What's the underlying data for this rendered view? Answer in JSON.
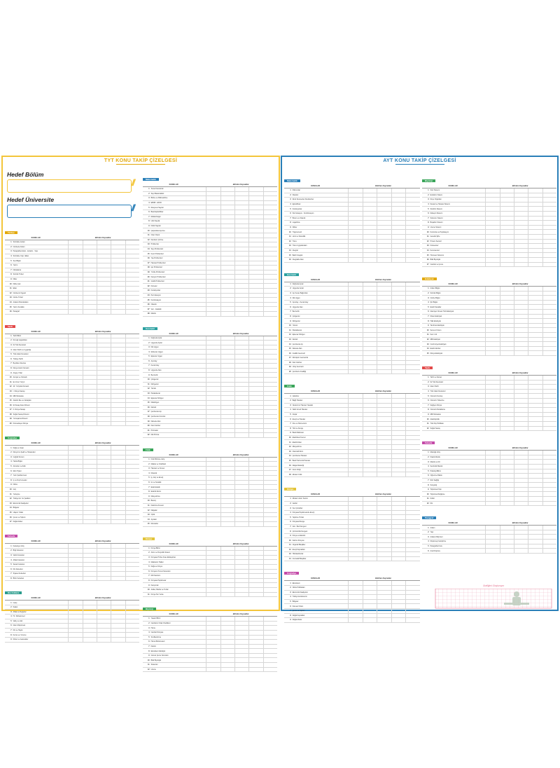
{
  "tyt": {
    "title": "TYT KONU TAKİP ÇİZELGESİ",
    "hedef_bolum": "Hedef Bölüm",
    "hedef_universite": "Hedef Üniversite",
    "konular_label": "KONULAR",
    "bitirilen_label": "Bitirilen Kaynaklar",
    "columns": [
      [
        {
          "name": "Türkçe",
          "color": "#e2a90c",
          "topics": [
            "Sözcükte Anlam",
            "Cümlede Anlam",
            "Paragrafta Anlam - Anlatım - Yapı",
            "Sözcükte Yapı / Ekler",
            "Ses Bilgisi",
            "Yazım",
            "Noktalama",
            "Sözcük Türleri",
            "Fiiller",
            "Fiilde Çatı",
            "Ekler",
            "Cümlenin Ögeleri",
            "Cümle Türleri",
            "Anlatım Bozuklukları",
            "Yazım Kuralları",
            "Paragraf"
          ]
        },
        {
          "name": "Tarih",
          "color": "#e24a4a",
          "topics": [
            "Tarih Bilimi",
            "İlk Çağ Uygarlıkları",
            "İlk Türk Devletleri",
            "İslam Tarihi ve Uygarlığı",
            "Türk-İslam Devletleri",
            "Türkiye Tarihi",
            "Beylikten Devlete",
            "Dünya Gücü Osmanlı",
            "Arayış Yılları",
            "Avrupa ve Osmanlı",
            "En Uzun Yüzyıl",
            "20. Yüzyılda Osmanlı",
            "I. Dünya Savaşı",
            "Milli Mücadele",
            "Atatürk İlke ve İnkılapları",
            "İki Savaş Arası Dönem",
            "II. Dünya Savaşı",
            "Soğuk Savaş Dönemi",
            "Yumuşama Dönemi",
            "Küreselleşen Dünya"
          ]
        },
        {
          "name": "Coğrafya",
          "color": "#3aa55a",
          "topics": [
            "Doğa ve İnsan",
            "Dünya'nın Şekli ve Hareketleri",
            "Coğrafi Konum",
            "Harita Bilgisi",
            "Atmosfer ve İklim",
            "İklim Tipleri",
            "Yerin Şekillenmesi",
            "İç ve Dış Kuvvetler",
            "Nüfus",
            "Göç",
            "Yerleşme",
            "Türkiye'nin Yer Şekilleri",
            "Ekonomik Faaliyetler",
            "Bölgeler",
            "Ulaşım Yolları",
            "Çevre ve Toplum",
            "Doğal Afetler"
          ]
        },
        {
          "name": "Felsefe",
          "color": "#c44aa8",
          "topics": [
            "Felsefeye Giriş",
            "Bilgi Felsefesi",
            "Varlık Felsefesi",
            "Ahlak Felsefesi",
            "Sanat Felsefesi",
            "Din Felsefesi",
            "Siyaset Felsefesi",
            "Bilim Felsefesi"
          ]
        },
        {
          "name": "Din Kültürü",
          "color": "#2a9c8c",
          "topics": [
            "İnanç",
            "İbadet",
            "Ahlak ve Değerler",
            "Hz. Muhammed",
            "Vahiy ve Akıl",
            "İslam Düşüncesi",
            "Din ve Hayat",
            "Kur'an ve Yorumu",
            "Dinler ve Gelenekler"
          ]
        }
      ],
      [
        {
          "name": "Matematik",
          "color": "#2a7fb8",
          "topics": [
            "Temel Kavramlar",
            "Sayı Basamakları",
            "Bölme ve Bölünebilme",
            "EBOB - EKOK",
            "Rasyonel Sayılar",
            "Basit Eşitsizlikler",
            "Mutlak Değer",
            "Üslü Sayılar",
            "Köklü Sayılar",
            "Çarpanlara Ayırma",
            "Oran Orantı",
            "Denklem Çözme",
            "Problemler",
            "Sayı Problemleri",
            "Kesir Problemleri",
            "Yaş Problemleri",
            "Hareket Problemleri",
            "İşçi Problemleri",
            "Yüzde Problemleri",
            "Karışım Problemleri",
            "Grafik Problemleri",
            "Kümeler",
            "Fonksiyonlar",
            "Permütasyon",
            "Kombinasyon",
            "Olasılık",
            "Veri - İstatistik",
            "Mantık"
          ]
        },
        {
          "name": "Geometri",
          "color": "#2aa0a0",
          "topics": [
            "Doğruda Açılar",
            "Üçgende Açılar",
            "Dik Üçgen",
            "İkizkenar Üçgen",
            "Eşkenar Üçgen",
            "Açıortay",
            "Kenarortay",
            "Üçgende Alan",
            "Benzerlik",
            "Çokgenler",
            "Dörtgenler",
            "Yamuk",
            "Paralelkenar",
            "Eşkenar Dörtgen",
            "Dikdörtgen",
            "Deltoid",
            "Çemberde Açı",
            "Çemberde Uzunluk",
            "Dairede Alan",
            "Katı Cisimler",
            "Prizmalar",
            "Dik Prizma"
          ]
        },
        {
          "name": "Fizik",
          "color": "#3aa55a",
          "topics": [
            "Fizik Bilimine Giriş",
            "Madde ve Özellikleri",
            "Hareket ve Kuvvet",
            "Dinamik",
            "İş, Güç ve Enerji",
            "Isı ve Sıcaklık",
            "Elektrostatik",
            "Elektrik Akımı",
            "Manyetizma",
            "Basınç",
            "Kaldırma Kuvveti",
            "Dalgalar",
            "Optik",
            "Aynalar",
            "Mercekler"
          ]
        },
        {
          "name": "Kimya",
          "color": "#e2c43a",
          "topics": [
            "Kimya Bilimi",
            "Atom ve Periyodik Sistem",
            "Kimyasal Türler Arası Etkileşimler",
            "Maddenin Halleri",
            "Doğa ve Kimya",
            "Kimyanın Temel Kanunları",
            "Mol Kavramı",
            "Kimyasal Tepkimeler",
            "Karışımlar",
            "Asitler, Bazlar ve Tuzlar",
            "Kimya Her Yerde"
          ]
        },
        {
          "name": "Biyoloji",
          "color": "#3aa55a",
          "topics": [
            "Yaşam Bilimi",
            "Canlıların Ortak Özellikleri",
            "Hücre",
            "Canlılar Dünyası",
            "Sınıflandırma",
            "Hücre Bölünmeleri",
            "Kalıtım",
            "Ekosistem Ekolojisi",
            "Güncel Çevre Sorunları",
            "Bitki Biyolojisi",
            "Sistemler",
            "Üreme"
          ]
        }
      ]
    ]
  },
  "ayt": {
    "title": "AYT KONU TAKİP ÇİZELGESİ",
    "konular_label": "KONULAR",
    "bitirilen_label": "Bitirilen Kaynaklar",
    "graph_title": "Grafiğimi Oluşturuyor",
    "columns": [
      [
        {
          "name": "Matematik",
          "color": "#2a7fb8",
          "topics": [
            "Polinomlar",
            "Parabol",
            "İkinci Dereceden Denklemler",
            "Eşitsizlikler",
            "Fonksiyonlar",
            "Permütasyon - Kombinasyon",
            "Binom ve Olasılık",
            "Logaritma",
            "Diziler",
            "Trigonometri",
            "Limit ve Süreklilik",
            "Türev",
            "Türev Uygulamaları",
            "İntegral",
            "Belirli İntegral",
            "İntegralde Alan"
          ]
        },
        {
          "name": "Geometri",
          "color": "#2aa0a0",
          "topics": [
            "Doğruda Açılar",
            "Üçgende Açılar",
            "Açı Kenar Bağıntıları",
            "Dik Üçgen",
            "Açıortay - Kenarortay",
            "Üçgende Alan",
            "Benzerlik",
            "Çokgenler",
            "Dörtgenler",
            "Yamuk",
            "Paralelkenar",
            "Eşkenar Dörtgen",
            "Deltoid",
            "Çemberde Açı",
            "Dairede Alan",
            "Analitik Geometri",
            "Dönüşüm Geometrisi",
            "Katı Cisimler",
            "Uzay Geometri",
            "Çemberin Analitiği"
          ]
        },
        {
          "name": "Fizik",
          "color": "#3aa55a",
          "topics": [
            "Vektörler",
            "Bağıl Hareket",
            "Newton'un Hareket Yasaları",
            "Sabit İvmeli Hareket",
            "Atışlar",
            "Enerji ve Hareket",
            "İtme ve Momentum",
            "Tork ve Denge",
            "Basit Makineler",
            "Elektriksel Kuvvet",
            "Elektrik Alan",
            "Manyetizma",
            "Alternatif Akım",
            "Çembersel Hareket",
            "Basit Harmonik Hareket",
            "Dalga Mekaniği",
            "Atom Fiziği",
            "Modern Fizik"
          ]
        },
        {
          "name": "Kimya",
          "color": "#e2c43a",
          "topics": [
            "Modern Atom Teorisi",
            "Gazlar",
            "Sıvı Çözeltiler",
            "Kimyasal Tepkimelerde Enerji",
            "Tepkime Hızları",
            "Kimyasal Denge",
            "Asit - Baz Dengesi",
            "Çözünürlük Dengesi",
            "Kimya ve Elektrik",
            "Karbon Kimyası",
            "Organik Bileşikler",
            "Enerji Kaynakları",
            "Hidrokarbonlar",
            "Aromatik Bileşikler"
          ]
        },
        {
          "name": "Coğrafya",
          "color": "#c44aa8",
          "topics": [
            "Ekosistem",
            "Nüfus Politikaları",
            "Ekonomik Faaliyetler",
            "Türkiye'de Ekonomi",
            "Bölgeler",
            "Küresel Ortam",
            "Çevre ve Toplum",
            "Doğal Kaynaklar",
            "Doğal Afetler"
          ]
        }
      ],
      [
        {
          "name": "Biyoloji",
          "color": "#3aa55a",
          "topics": [
            "Sinir Sistemi",
            "Endokrin Sistem",
            "Duyu Organları",
            "Destek ve Hareket Sistemi",
            "Sindirim Sistemi",
            "Dolaşım Sistemi",
            "Solunum Sistemi",
            "Boşaltım Sistemi",
            "Üreme Sistemi",
            "Komünite ve Popülasyon",
            "Genetik Şifre",
            "Protein Sentezi",
            "Fotosentez",
            "Kemosentez",
            "Hücresel Solunum",
            "Bitki Biyolojisi",
            "Canlılar ve Çevre"
          ]
        },
        {
          "name": "Edebiyat",
          "color": "#e2a90c",
          "topics": [
            "Anlam Bilgisi",
            "Sözcük Bilgisi",
            "Cümle Bilgisi",
            "Şiir Bilgisi",
            "Edebi Sanatlar",
            "İslamiyet Öncesi Türk Edebiyatı",
            "Divan Edebiyatı",
            "Halk Edebiyatı",
            "Tanzimat Edebiyatı",
            "Servet-i Fünun",
            "Fecr-i Ati",
            "Milli Edebiyat",
            "Cumhuriyet Edebiyatı",
            "Edebi Akımlar",
            "Dünya Edebiyatı"
          ]
        },
        {
          "name": "Tarih",
          "color": "#e24a4a",
          "topics": [
            "Tarih ve Zaman",
            "İlk Türk Devletleri",
            "İslam Tarihi",
            "Türk İslam Devletleri",
            "Osmanlı Kuruluş",
            "Osmanlı Yükselme",
            "Değişen Dünya",
            "Osmanlı Duraklama",
            "Milli Mücadele",
            "Atatürkçülük",
            "Türk Dış Politikası",
            "Soğuk Savaş"
          ]
        },
        {
          "name": "Felsefe",
          "color": "#c44aa8",
          "topics": [
            "Mantığa Giriş",
            "Klasik Mantık",
            "Mantık ve Dil",
            "Sembolik Mantık",
            "Psikoloji Bilimi",
            "Öğrenme Bellek",
            "Ruh Sağlığı",
            "Sosyoloji",
            "Toplumsal Yapı",
            "Toplumsal Değişme",
            "Kültür",
            "Din"
          ]
        },
        {
          "name": "Paragraf",
          "color": "#2a7fb8",
          "topics": [
            "Anlam",
            "Yapı",
            "Anlatım Biçimleri",
            "Düşünceyi Geliştirme",
            "Paragrafta Konu",
            "Ana Düşünce"
          ]
        }
      ]
    ]
  }
}
